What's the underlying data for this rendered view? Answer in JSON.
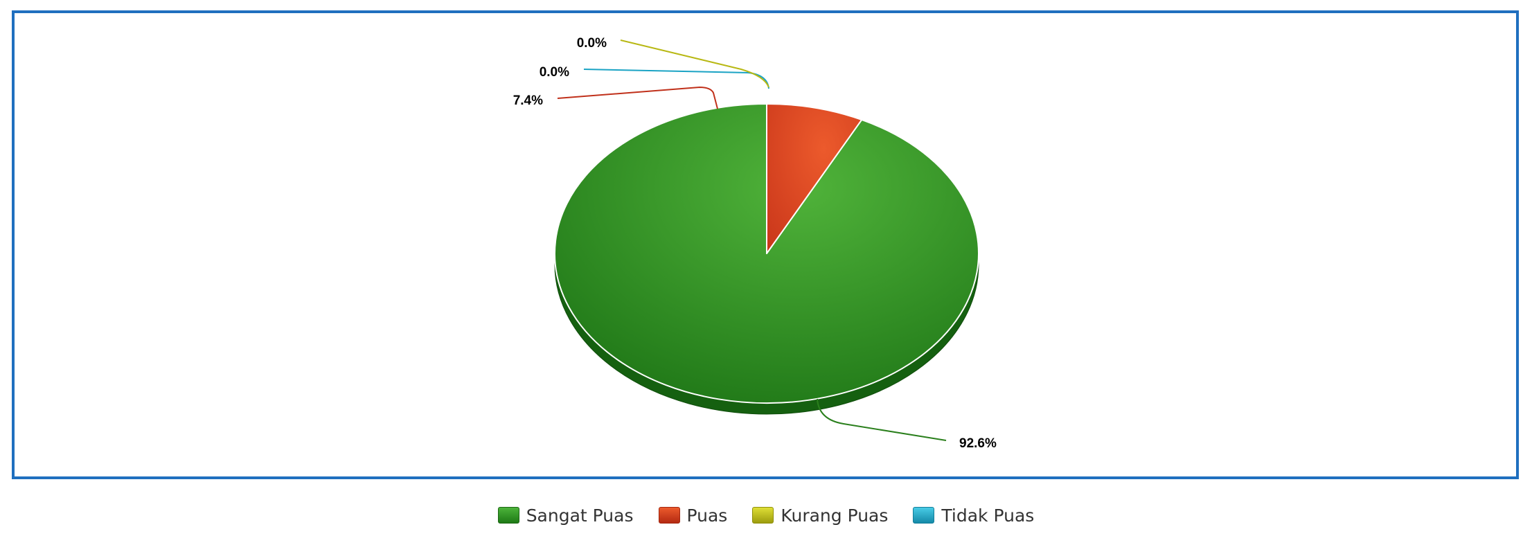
{
  "chart_data": {
    "type": "pie",
    "title": "",
    "categories": [
      "Sangat Puas",
      "Puas",
      "Kurang Puas",
      "Tidak Puas"
    ],
    "values": [
      92.6,
      7.4,
      0.0,
      0.0
    ],
    "data_labels": [
      "92.6%",
      "7.4%",
      "0.0%",
      "0.0%"
    ],
    "colors": [
      "#2e8b1f",
      "#d83a1a",
      "#b8b814",
      "#1aa3c4"
    ],
    "legend_position": "bottom-center",
    "style": "3d-tilted-pie",
    "start_angle": "12-o-clock"
  }
}
